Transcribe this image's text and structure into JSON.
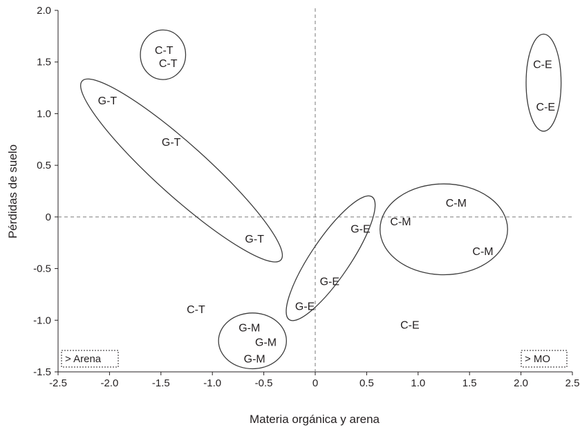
{
  "chart_data": {
    "type": "scatter",
    "title": "",
    "xlabel": "Materia orgánica y arena",
    "ylabel": "Pérdidas de suelo",
    "xlim": [
      -2.5,
      2.5
    ],
    "ylim": [
      -1.5,
      2.0
    ],
    "x_ticks": [
      "-2.5",
      "-2.0",
      "-1.5",
      "-1.0",
      "-0.5",
      "0",
      "0.5",
      "1.0",
      "1.5",
      "2.0",
      "2.5"
    ],
    "y_ticks": [
      "-1.5",
      "-1.0",
      "-0.5",
      "0",
      "0.5",
      "1.0",
      "1.5",
      "2.0"
    ],
    "x_tick_values": [
      -2.5,
      -2.0,
      -1.5,
      -1.0,
      -0.5,
      0,
      0.5,
      1.0,
      1.5,
      2.0,
      2.5
    ],
    "y_tick_values": [
      -1.5,
      -1.0,
      -0.5,
      0,
      0.5,
      1.0,
      1.5,
      2.0
    ],
    "reference_lines": {
      "x": 0,
      "y": 0
    },
    "grid": false,
    "points": [
      {
        "label": "C-T",
        "x": -1.47,
        "y": 1.62
      },
      {
        "label": "C-T",
        "x": -1.43,
        "y": 1.49
      },
      {
        "label": "G-T",
        "x": -2.02,
        "y": 1.13
      },
      {
        "label": "G-T",
        "x": -1.4,
        "y": 0.73
      },
      {
        "label": "G-T",
        "x": -0.59,
        "y": -0.21
      },
      {
        "label": "C-T",
        "x": -1.16,
        "y": -0.89
      },
      {
        "label": "G-M",
        "x": -0.64,
        "y": -1.07
      },
      {
        "label": "G-M",
        "x": -0.48,
        "y": -1.21
      },
      {
        "label": "G-M",
        "x": -0.59,
        "y": -1.37
      },
      {
        "label": "G-E",
        "x": 0.44,
        "y": -0.11
      },
      {
        "label": "G-E",
        "x": 0.14,
        "y": -0.62
      },
      {
        "label": "G-E",
        "x": -0.1,
        "y": -0.86
      },
      {
        "label": "C-M",
        "x": 0.83,
        "y": -0.04
      },
      {
        "label": "C-M",
        "x": 1.37,
        "y": 0.14
      },
      {
        "label": "C-M",
        "x": 1.63,
        "y": -0.33
      },
      {
        "label": "C-E",
        "x": 0.92,
        "y": -1.04
      },
      {
        "label": "C-E",
        "x": 2.21,
        "y": 1.48
      },
      {
        "label": "C-E",
        "x": 2.24,
        "y": 1.07
      }
    ],
    "groups": [
      {
        "cx": -1.48,
        "cy": 1.57,
        "rx": 0.22,
        "ry": 0.24,
        "angle": 0
      },
      {
        "cx": -1.3,
        "cy": 0.45,
        "rx": 1.3,
        "ry": 0.25,
        "angle": 42
      },
      {
        "cx": 0.15,
        "cy": -0.4,
        "rx": 0.72,
        "ry": 0.19,
        "angle": -56
      },
      {
        "cx": 1.25,
        "cy": -0.12,
        "rx": 0.62,
        "ry": 0.44,
        "angle": 0
      },
      {
        "cx": -0.61,
        "cy": -1.2,
        "rx": 0.33,
        "ry": 0.27,
        "angle": 0
      },
      {
        "cx": 2.22,
        "cy": 1.3,
        "rx": 0.17,
        "ry": 0.47,
        "angle": 0
      }
    ],
    "annotations": [
      "> Arena",
      "> MO"
    ]
  }
}
